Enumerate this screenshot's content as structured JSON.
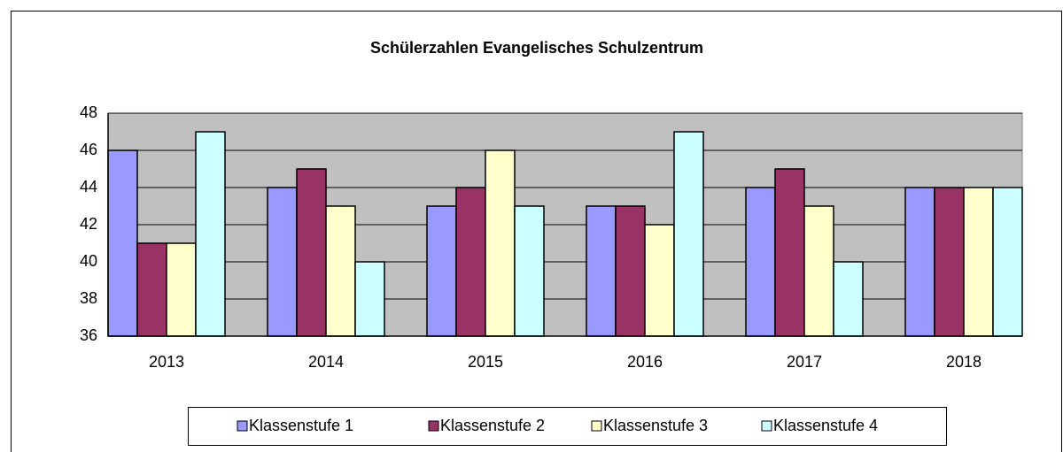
{
  "chart_data": {
    "type": "bar",
    "title": "Schülerzahlen Evangelisches Schulzentrum",
    "categories": [
      "2013",
      "2014",
      "2015",
      "2016",
      "2017",
      "2018"
    ],
    "series": [
      {
        "name": "Klassenstufe 1",
        "color": "#9999ff",
        "values": [
          46,
          44,
          43,
          43,
          44,
          44
        ]
      },
      {
        "name": "Klassenstufe 2",
        "color": "#993366",
        "values": [
          41,
          45,
          44,
          43,
          45,
          44
        ]
      },
      {
        "name": "Klassenstufe 3",
        "color": "#ffffcc",
        "values": [
          41,
          43,
          46,
          42,
          43,
          44
        ]
      },
      {
        "name": "Klassenstufe 4",
        "color": "#ccffff",
        "values": [
          47,
          40,
          43,
          47,
          40,
          44
        ]
      }
    ],
    "ylim": [
      36,
      48
    ],
    "yticks": [
      36,
      38,
      40,
      42,
      44,
      46,
      48
    ],
    "grid": true,
    "plot_background": "#c0c0c0",
    "legend": "bottom"
  }
}
